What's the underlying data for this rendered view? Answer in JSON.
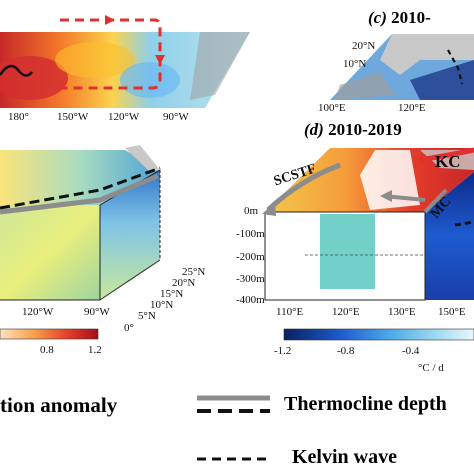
{
  "panels": {
    "c": {
      "letter": "(c)",
      "period": "2010-"
    },
    "d": {
      "letter": "(d)",
      "period": "2010-2019"
    }
  },
  "top_left_map": {
    "lon_ticks": [
      "180°",
      "150°W",
      "120°W",
      "90°W"
    ]
  },
  "top_right_map": {
    "lat_ticks": [
      "20°N",
      "10°N"
    ],
    "lon_ticks": [
      "100°E",
      "120°E"
    ]
  },
  "left_block": {
    "lat_ticks": [
      "25°N",
      "20°N",
      "15°N",
      "10°N",
      "5°N",
      "0°"
    ],
    "lon_ticks": [
      "120°W",
      "90°W"
    ]
  },
  "right_block": {
    "depth_ticks": [
      "0m",
      "-100m",
      "-200m",
      "-300m",
      "-400m"
    ],
    "lon_ticks": [
      "110°E",
      "120°E",
      "130°E",
      "150°E"
    ],
    "current_labels": {
      "scstf": "SCSTF",
      "kc": "KC",
      "mc": "MC"
    }
  },
  "colorbar_left": {
    "ticks": [
      "0.8",
      "1.2"
    ]
  },
  "colorbar_right": {
    "ticks": [
      "-1.2",
      "-0.8",
      "-0.4"
    ],
    "unit": "°C / d"
  },
  "legend": {
    "anomaly": "tion anomaly",
    "thermocline": "Thermocline depth",
    "kelvin": "Kelvin wave"
  },
  "colors": {
    "warm": "#d7191c",
    "cool": "#2b83ba",
    "thermocline_gray": "#8c8c8c",
    "arrow_red": "#e03030"
  }
}
